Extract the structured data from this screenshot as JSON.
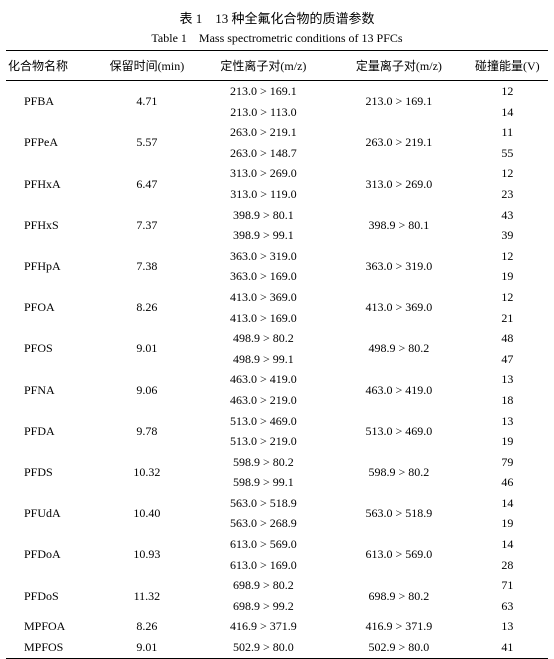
{
  "caption_cn": "表 1　13 种全氟化合物的质谱参数",
  "caption_en": "Table 1　Mass spectrometric conditions of 13 PFCs",
  "columns": [
    "化合物名称",
    "保留时间(min)",
    "定性离子对(m/z)",
    "定量离子对(m/z)",
    "碰撞能量(V)"
  ],
  "compounds": [
    {
      "name": "PFBA",
      "rt": "4.71",
      "qual": [
        "213.0 > 169.1",
        "213.0 > 113.0"
      ],
      "quant": "213.0 > 169.1",
      "ce": [
        "12",
        "14"
      ]
    },
    {
      "name": "PFPeA",
      "rt": "5.57",
      "qual": [
        "263.0 > 219.1",
        "263.0 > 148.7"
      ],
      "quant": "263.0 > 219.1",
      "ce": [
        "11",
        "55"
      ]
    },
    {
      "name": "PFHxA",
      "rt": "6.47",
      "qual": [
        "313.0 > 269.0",
        "313.0 > 119.0"
      ],
      "quant": "313.0 > 269.0",
      "ce": [
        "12",
        "23"
      ]
    },
    {
      "name": "PFHxS",
      "rt": "7.37",
      "qual": [
        "398.9 > 80.1",
        "398.9 > 99.1"
      ],
      "quant": "398.9 > 80.1",
      "ce": [
        "43",
        "39"
      ]
    },
    {
      "name": "PFHpA",
      "rt": "7.38",
      "qual": [
        "363.0 > 319.0",
        "363.0 > 169.0"
      ],
      "quant": "363.0 > 319.0",
      "ce": [
        "12",
        "19"
      ]
    },
    {
      "name": "PFOA",
      "rt": "8.26",
      "qual": [
        "413.0 > 369.0",
        "413.0 > 169.0"
      ],
      "quant": "413.0 > 369.0",
      "ce": [
        "12",
        "21"
      ]
    },
    {
      "name": "PFOS",
      "rt": "9.01",
      "qual": [
        "498.9 > 80.2",
        "498.9 > 99.1"
      ],
      "quant": "498.9 > 80.2",
      "ce": [
        "48",
        "47"
      ]
    },
    {
      "name": "PFNA",
      "rt": "9.06",
      "qual": [
        "463.0 > 419.0",
        "463.0 > 219.0"
      ],
      "quant": "463.0 > 419.0",
      "ce": [
        "13",
        "18"
      ]
    },
    {
      "name": "PFDA",
      "rt": "9.78",
      "qual": [
        "513.0 > 469.0",
        "513.0 > 219.0"
      ],
      "quant": "513.0 > 469.0",
      "ce": [
        "13",
        "19"
      ]
    },
    {
      "name": "PFDS",
      "rt": "10.32",
      "qual": [
        "598.9 > 80.2",
        "598.9 > 99.1"
      ],
      "quant": "598.9 > 80.2",
      "ce": [
        "79",
        "46"
      ]
    },
    {
      "name": "PFUdA",
      "rt": "10.40",
      "qual": [
        "563.0 > 518.9",
        "563.0 > 268.9"
      ],
      "quant": "563.0 > 518.9",
      "ce": [
        "14",
        "19"
      ]
    },
    {
      "name": "PFDoA",
      "rt": "10.93",
      "qual": [
        "613.0 > 569.0",
        "613.0 > 169.0"
      ],
      "quant": "613.0 > 569.0",
      "ce": [
        "14",
        "28"
      ]
    },
    {
      "name": "PFDoS",
      "rt": "11.32",
      "qual": [
        "698.9 > 80.2",
        "698.9 > 99.2"
      ],
      "quant": "698.9 > 80.2",
      "ce": [
        "71",
        "63"
      ]
    },
    {
      "name": "MPFOA",
      "rt": "8.26",
      "qual": [
        "416.9 > 371.9"
      ],
      "quant": "416.9 > 371.9",
      "ce": [
        "13"
      ]
    },
    {
      "name": "MPFOS",
      "rt": "9.01",
      "qual": [
        "502.9 > 80.0"
      ],
      "quant": "502.9 > 80.0",
      "ce": [
        "41"
      ]
    }
  ],
  "col_widths": [
    "17%",
    "18%",
    "25%",
    "25%",
    "15%"
  ]
}
